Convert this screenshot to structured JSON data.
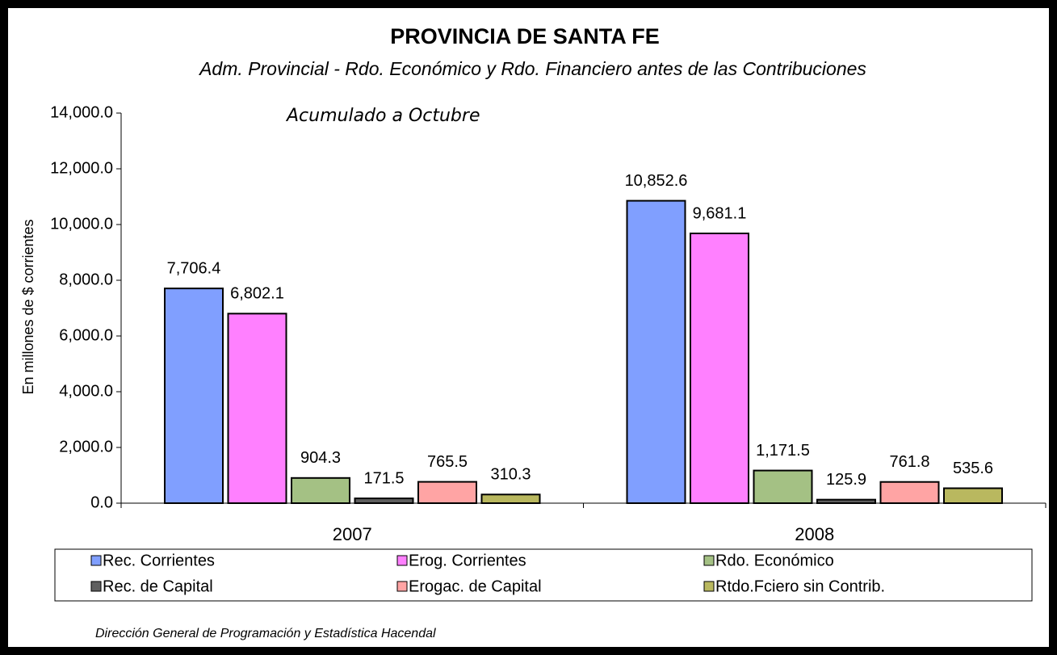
{
  "chart_data": {
    "type": "bar",
    "title": "PROVINCIA DE SANTA FE",
    "subtitle": "Adm. Provincial - Rdo. Económico y Rdo. Financiero antes de las Contribuciones",
    "annotation": "Acumulado a Octubre",
    "y_label": "En millones de $ corrientes",
    "source": "Dirección General de Programación y Estadística Hacendal",
    "categories": [
      "2007",
      "2008"
    ],
    "series": [
      {
        "name": "Rec. Corrientes",
        "color": "#809fff",
        "values": [
          7706.4,
          10852.6
        ],
        "value_labels": [
          "7,706.4",
          "10,852.6"
        ]
      },
      {
        "name": "Erog. Corrientes",
        "color": "#ff80ff",
        "values": [
          6802.1,
          9681.1
        ],
        "value_labels": [
          "6,802.1",
          "9,681.1"
        ]
      },
      {
        "name": "Rdo. Económico",
        "color": "#a4c184",
        "values": [
          904.3,
          1171.5
        ],
        "value_labels": [
          "904.3",
          "1,171.5"
        ]
      },
      {
        "name": "Rec. de Capital",
        "color": "#5f5f5f",
        "values": [
          171.5,
          125.9
        ],
        "value_labels": [
          "171.5",
          "125.9"
        ]
      },
      {
        "name": "Erogac. de Capital",
        "color": "#ffa4a4",
        "values": [
          765.5,
          761.8
        ],
        "value_labels": [
          "765.5",
          "761.8"
        ]
      },
      {
        "name": "Rtdo.Fciero sin Contrib.",
        "color": "#b9b85f",
        "values": [
          310.3,
          535.6
        ],
        "value_labels": [
          "310.3",
          "535.6"
        ]
      }
    ],
    "ylim": [
      0,
      14000
    ],
    "yticks": [
      {
        "value": 0,
        "label": "0.0"
      },
      {
        "value": 2000,
        "label": "2,000.0"
      },
      {
        "value": 4000,
        "label": "4,000.0"
      },
      {
        "value": 6000,
        "label": "6,000.0"
      },
      {
        "value": 8000,
        "label": "8,000.0"
      },
      {
        "value": 10000,
        "label": "10,000.0"
      },
      {
        "value": 12000,
        "label": "12,000.0"
      },
      {
        "value": 14000,
        "label": "14,000.0"
      }
    ]
  }
}
